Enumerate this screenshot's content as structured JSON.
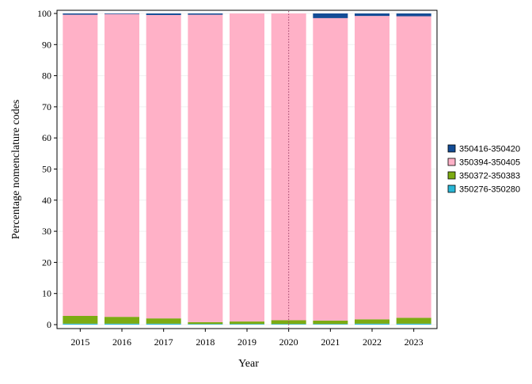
{
  "chart_data": {
    "type": "bar",
    "stacked": true,
    "categories": [
      "2015",
      "2016",
      "2017",
      "2018",
      "2019",
      "2020",
      "2021",
      "2022",
      "2023"
    ],
    "series": [
      {
        "name": "350276-350280",
        "color": "#29b6d6",
        "values": [
          0.3,
          0.3,
          0.3,
          0.2,
          0.2,
          0.2,
          0.2,
          0.3,
          0.3
        ]
      },
      {
        "name": "350372-350383",
        "color": "#7cab12",
        "values": [
          2.5,
          2.2,
          1.7,
          0.6,
          0.8,
          1.2,
          1.1,
          1.4,
          1.9
        ]
      },
      {
        "name": "350394-350405",
        "color": "#ffb1c7",
        "values": [
          96.8,
          97.3,
          97.5,
          98.8,
          99.0,
          98.6,
          97.2,
          97.5,
          96.9
        ]
      },
      {
        "name": "350416-350420",
        "color": "#134c96",
        "values": [
          0.4,
          0.2,
          0.5,
          0.4,
          0.0,
          0.0,
          1.5,
          0.8,
          0.9
        ]
      }
    ],
    "xlabel": "Year",
    "ylabel": "Percentage nomenclature codes",
    "ylim": [
      0,
      100
    ],
    "yticks": [
      0,
      10,
      20,
      30,
      40,
      50,
      60,
      70,
      80,
      90,
      100
    ],
    "reference_line": {
      "x": "2020",
      "style": "dotted",
      "color": "#a0446a"
    },
    "legend_position": "right"
  }
}
